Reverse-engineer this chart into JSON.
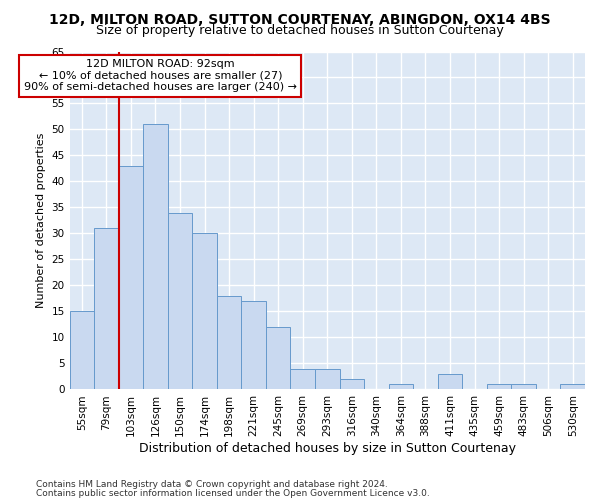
{
  "title1": "12D, MILTON ROAD, SUTTON COURTENAY, ABINGDON, OX14 4BS",
  "title2": "Size of property relative to detached houses in Sutton Courtenay",
  "xlabel": "Distribution of detached houses by size in Sutton Courtenay",
  "ylabel": "Number of detached properties",
  "categories": [
    "55sqm",
    "79sqm",
    "103sqm",
    "126sqm",
    "150sqm",
    "174sqm",
    "198sqm",
    "221sqm",
    "245sqm",
    "269sqm",
    "293sqm",
    "316sqm",
    "340sqm",
    "364sqm",
    "388sqm",
    "411sqm",
    "435sqm",
    "459sqm",
    "483sqm",
    "506sqm",
    "530sqm"
  ],
  "values": [
    15,
    31,
    43,
    51,
    34,
    30,
    18,
    17,
    12,
    4,
    4,
    2,
    0,
    1,
    0,
    3,
    0,
    1,
    1,
    0,
    1
  ],
  "bar_color": "#c9d9f0",
  "bar_edge_color": "#6699cc",
  "background_color": "#dde8f5",
  "grid_color": "#ffffff",
  "vline_color": "#cc0000",
  "vline_x": 1.5,
  "annotation_text": "12D MILTON ROAD: 92sqm\n← 10% of detached houses are smaller (27)\n90% of semi-detached houses are larger (240) →",
  "annotation_box_facecolor": "#ffffff",
  "annotation_box_edgecolor": "#cc0000",
  "footer1": "Contains HM Land Registry data © Crown copyright and database right 2024.",
  "footer2": "Contains public sector information licensed under the Open Government Licence v3.0.",
  "fig_facecolor": "#ffffff",
  "ylim": [
    0,
    65
  ],
  "yticks": [
    0,
    5,
    10,
    15,
    20,
    25,
    30,
    35,
    40,
    45,
    50,
    55,
    60,
    65
  ],
  "title1_fontsize": 10,
  "title2_fontsize": 9,
  "xlabel_fontsize": 9,
  "ylabel_fontsize": 8,
  "tick_fontsize": 7.5,
  "annotation_fontsize": 8,
  "footer_fontsize": 6.5
}
